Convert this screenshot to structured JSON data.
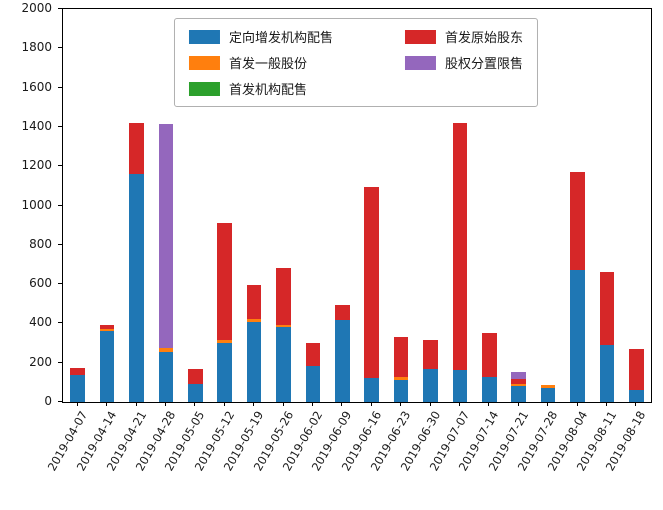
{
  "chart_data": {
    "type": "bar",
    "stacked": true,
    "title": "",
    "xlabel": "",
    "ylabel": "",
    "ylim": [
      0,
      2000
    ],
    "yticks": [
      0,
      200,
      400,
      600,
      800,
      1000,
      1200,
      1400,
      1600,
      1800,
      2000
    ],
    "grid": false,
    "legend_position": "upper center",
    "legend_columns": 2,
    "legend_rows_per_column": 3,
    "categories": [
      "2019-04-07",
      "2019-04-14",
      "2019-04-21",
      "2019-04-28",
      "2019-05-05",
      "2019-05-12",
      "2019-05-19",
      "2019-05-26",
      "2019-06-02",
      "2019-06-09",
      "2019-06-16",
      "2019-06-23",
      "2019-06-30",
      "2019-07-07",
      "2019-07-14",
      "2019-07-21",
      "2019-07-28",
      "2019-08-04",
      "2019-08-11",
      "2019-08-18"
    ],
    "series": [
      {
        "name": "定向增发机构配售",
        "color": "#1f77b4",
        "values": [
          140,
          360,
          1160,
          255,
          90,
          300,
          405,
          380,
          185,
          415,
          120,
          110,
          170,
          165,
          125,
          80,
          70,
          670,
          290,
          60
        ]
      },
      {
        "name": "首发一般股份",
        "color": "#ff7f0e",
        "values": [
          0,
          10,
          0,
          20,
          0,
          15,
          20,
          10,
          0,
          0,
          0,
          15,
          0,
          0,
          0,
          10,
          15,
          0,
          0,
          0
        ]
      },
      {
        "name": "首发机构配售",
        "color": "#2ca02c",
        "values": [
          0,
          0,
          0,
          0,
          0,
          0,
          0,
          0,
          0,
          0,
          0,
          0,
          0,
          0,
          0,
          0,
          0,
          0,
          0,
          0
        ]
      },
      {
        "name": "首发原始股东",
        "color": "#d62728",
        "values": [
          35,
          20,
          260,
          0,
          80,
          595,
          170,
          290,
          115,
          80,
          975,
          205,
          145,
          1255,
          225,
          25,
          0,
          500,
          370,
          210
        ]
      },
      {
        "name": "股权分置限售",
        "color": "#9467bd",
        "values": [
          0,
          0,
          0,
          1140,
          0,
          0,
          0,
          0,
          0,
          0,
          0,
          0,
          0,
          0,
          0,
          40,
          0,
          0,
          0,
          0
        ]
      }
    ]
  }
}
